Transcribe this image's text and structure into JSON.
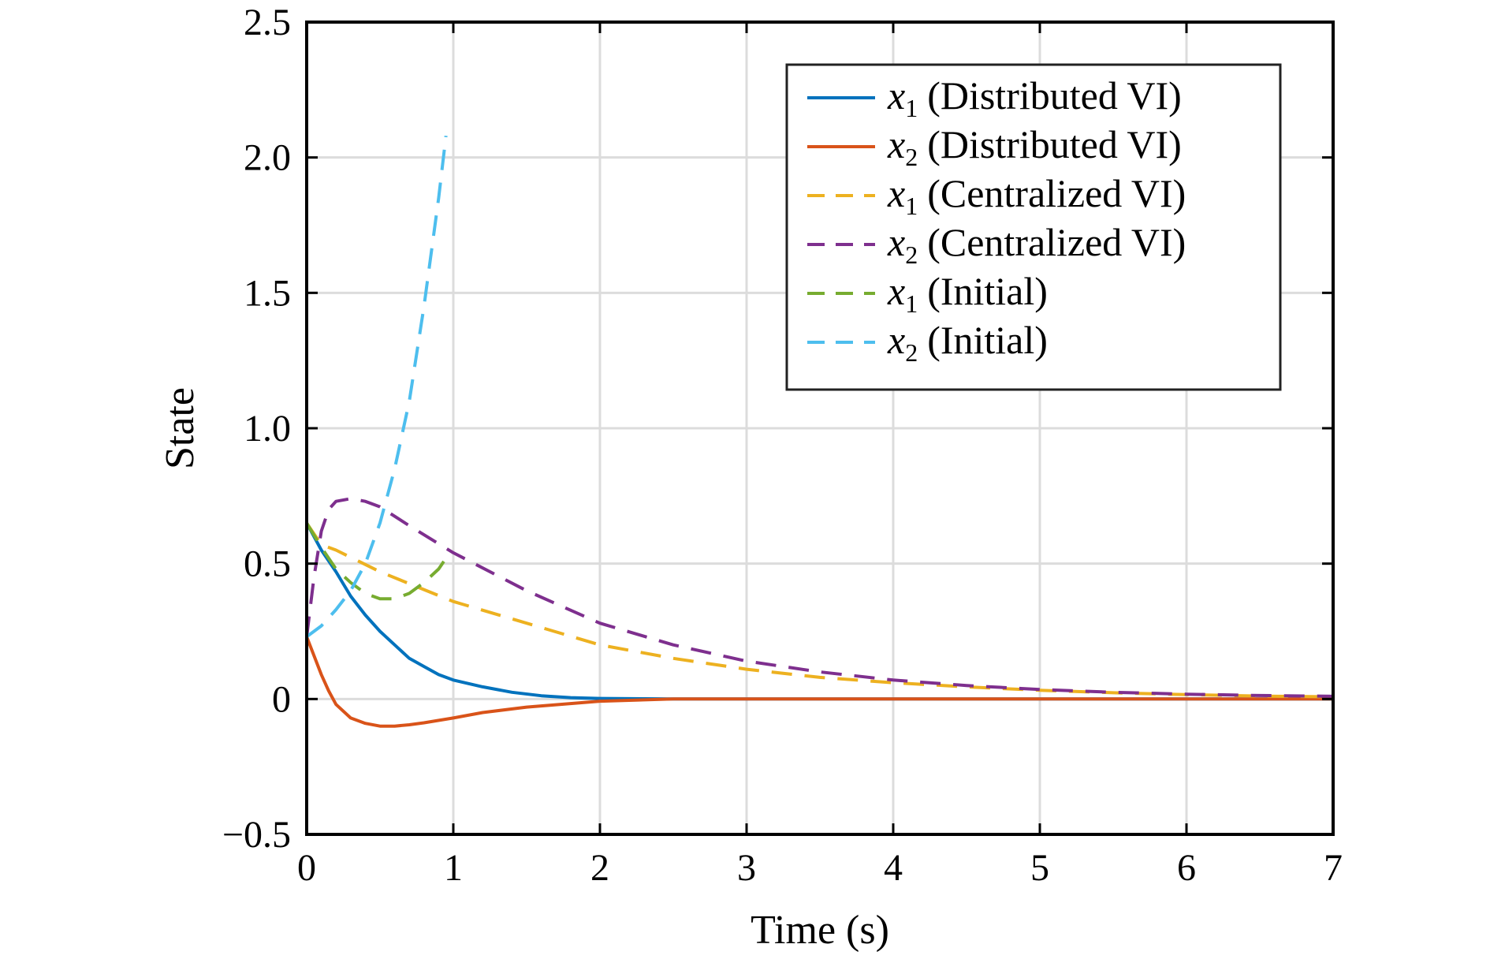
{
  "chart_data": {
    "type": "line",
    "title": "",
    "xlabel": "Time (s)",
    "ylabel": "State",
    "xlim": [
      0,
      7
    ],
    "ylim": [
      -0.5,
      2.5
    ],
    "xticks": [
      0,
      1,
      2,
      3,
      4,
      5,
      6,
      7
    ],
    "xtick_labels": [
      "0",
      "1",
      "2",
      "3",
      "4",
      "5",
      "6",
      "7"
    ],
    "yticks": [
      -0.5,
      0,
      0.5,
      1,
      1.5,
      2,
      2.5
    ],
    "ytick_labels": [
      "−0.5",
      "0",
      "0.5",
      "1.0",
      "1.5",
      "2.0",
      "2.5"
    ],
    "grid": true,
    "legend_position": "top-right",
    "series": [
      {
        "name": "(Distributed VI)",
        "var": "x",
        "sub": "1",
        "color": "#0072BD",
        "dash": "solid",
        "x": [
          0,
          0.1,
          0.2,
          0.3,
          0.4,
          0.5,
          0.6,
          0.7,
          0.8,
          0.9,
          1.0,
          1.2,
          1.4,
          1.6,
          1.8,
          2.0,
          2.5,
          3,
          4,
          5,
          6,
          7
        ],
        "y": [
          0.65,
          0.55,
          0.47,
          0.38,
          0.31,
          0.25,
          0.2,
          0.15,
          0.12,
          0.09,
          0.07,
          0.045,
          0.025,
          0.012,
          0.005,
          0.002,
          0.0,
          0.0,
          0.0,
          0.0,
          0.0,
          0.0
        ]
      },
      {
        "name": "(Distributed VI)",
        "var": "x",
        "sub": "2",
        "color": "#D95319",
        "dash": "solid",
        "x": [
          0,
          0.05,
          0.1,
          0.15,
          0.2,
          0.3,
          0.4,
          0.5,
          0.6,
          0.7,
          0.8,
          1.0,
          1.2,
          1.5,
          2.0,
          2.5,
          3,
          4,
          5,
          6,
          7
        ],
        "y": [
          0.23,
          0.16,
          0.09,
          0.03,
          -0.02,
          -0.07,
          -0.09,
          -0.1,
          -0.1,
          -0.095,
          -0.088,
          -0.07,
          -0.05,
          -0.03,
          -0.008,
          0.0,
          0.0,
          0.0,
          0.0,
          0.0,
          0.0
        ]
      },
      {
        "name": "(Centralized VI)",
        "var": "x",
        "sub": "1",
        "color": "#EDB120",
        "dash": "dashed",
        "x": [
          0,
          0.1,
          0.2,
          0.5,
          1.0,
          1.5,
          2.0,
          2.5,
          3.0,
          3.5,
          4.0,
          4.5,
          5.0,
          5.5,
          6.0,
          6.5,
          7.0
        ],
        "y": [
          0.65,
          0.57,
          0.55,
          0.47,
          0.36,
          0.28,
          0.2,
          0.15,
          0.11,
          0.08,
          0.06,
          0.045,
          0.032,
          0.023,
          0.016,
          0.011,
          0.008
        ]
      },
      {
        "name": "(Centralized VI)",
        "var": "x",
        "sub": "2",
        "color": "#7E2F8E",
        "dash": "dashed",
        "x": [
          0,
          0.05,
          0.1,
          0.15,
          0.2,
          0.3,
          0.4,
          0.5,
          0.7,
          1.0,
          1.5,
          2.0,
          2.5,
          3.0,
          3.5,
          4.0,
          4.5,
          5.0,
          5.5,
          6.0,
          6.5,
          7.0
        ],
        "y": [
          0.23,
          0.45,
          0.62,
          0.7,
          0.73,
          0.74,
          0.73,
          0.71,
          0.64,
          0.54,
          0.4,
          0.28,
          0.2,
          0.14,
          0.1,
          0.07,
          0.05,
          0.035,
          0.025,
          0.018,
          0.013,
          0.01
        ]
      },
      {
        "name": "(Initial)",
        "var": "x",
        "sub": "1",
        "color": "#77AC30",
        "dash": "dashed",
        "x": [
          0,
          0.1,
          0.2,
          0.3,
          0.4,
          0.5,
          0.6,
          0.7,
          0.8,
          0.9,
          0.95
        ],
        "y": [
          0.65,
          0.56,
          0.48,
          0.43,
          0.39,
          0.37,
          0.37,
          0.39,
          0.43,
          0.48,
          0.52
        ]
      },
      {
        "name": "(Initial)",
        "var": "x",
        "sub": "2",
        "color": "#4DBEEE",
        "dash": "dashed",
        "x": [
          0,
          0.1,
          0.2,
          0.3,
          0.4,
          0.5,
          0.6,
          0.7,
          0.8,
          0.9,
          0.95
        ],
        "y": [
          0.23,
          0.27,
          0.33,
          0.4,
          0.5,
          0.65,
          0.85,
          1.1,
          1.45,
          1.85,
          2.08
        ]
      }
    ]
  }
}
